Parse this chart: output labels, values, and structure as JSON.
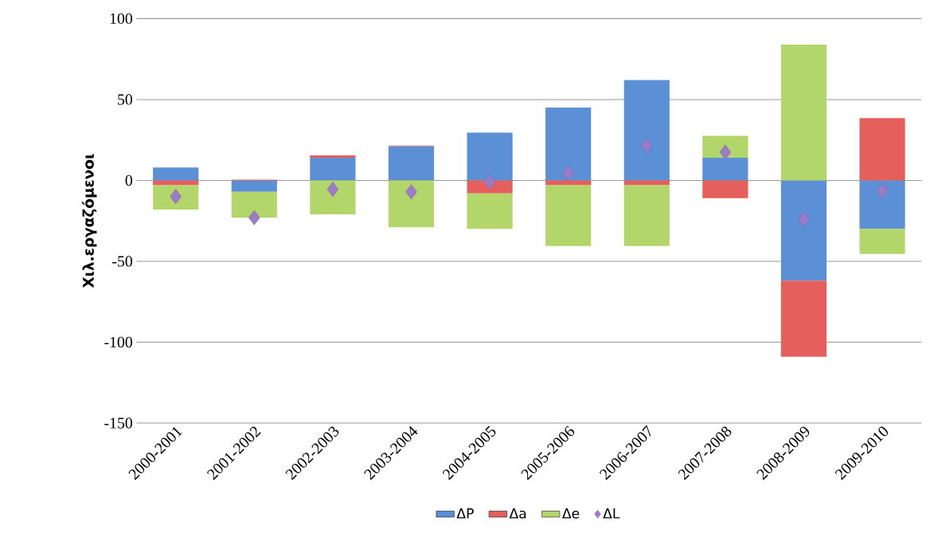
{
  "chart_data": {
    "type": "bar",
    "stacked": true,
    "ylabel": "Χιλ.εργαζόμενοι",
    "categories": [
      "2000-2001",
      "2001-2002",
      "2002-2003",
      "2003-2004",
      "2004-2005",
      "2005-2006",
      "2006-2007",
      "2007-2008",
      "2008-2009",
      "2009-2010"
    ],
    "series": [
      {
        "name": "ΔP",
        "color": "#5b8fd6",
        "values": [
          8,
          -7,
          14,
          21,
          29.5,
          45,
          62,
          14,
          -62,
          -30
        ]
      },
      {
        "name": "Δa",
        "color": "#e5605c",
        "values": [
          -3,
          0.5,
          1.5,
          0.5,
          -8,
          -3,
          -3,
          -11,
          -47,
          38.5
        ]
      },
      {
        "name": "Δe",
        "color": "#b3d66a",
        "values": [
          -15,
          -16,
          -21,
          -29,
          -22,
          -37.5,
          -37.5,
          13.5,
          84,
          -15.5
        ]
      },
      {
        "name": "ΔL",
        "type": "scatter",
        "marker": "diamond",
        "color": "#9c7cc8",
        "values": [
          -10,
          -23,
          -5.5,
          -7,
          -1,
          4.5,
          21.5,
          17.5,
          -24,
          -6.5
        ]
      }
    ],
    "ylim": [
      -150,
      100
    ],
    "yticks": [
      -150,
      -100,
      -50,
      0,
      50,
      100
    ],
    "grid": "y",
    "legend": "bottom"
  }
}
